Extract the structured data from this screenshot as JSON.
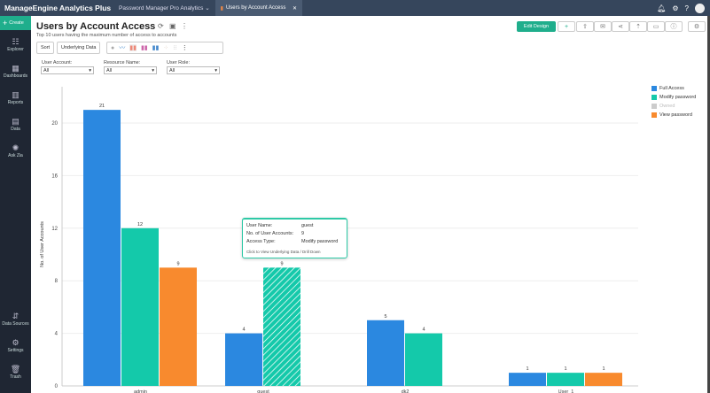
{
  "topbar": {
    "brand": "ManageEngine Analytics Plus",
    "workspace": "Password Manager Pro Analytics",
    "active_tab": "Users by Account Access"
  },
  "sidebar": {
    "create": "Create",
    "items": [
      {
        "label": "Explorer"
      },
      {
        "label": "Dashboards"
      },
      {
        "label": "Reports"
      },
      {
        "label": "Data"
      },
      {
        "label": "Ask Zia"
      },
      {
        "label": "Data Sources"
      },
      {
        "label": "Settings"
      },
      {
        "label": "Trash"
      }
    ]
  },
  "report": {
    "title": "Users by Account Access",
    "subtitle": "Top 10 users having the maximum number of access to accounts",
    "sort": "Sort",
    "underlying": "Underlying Data",
    "edit_design": "Edit Design"
  },
  "filters": [
    {
      "label": "User Account:",
      "value": "All"
    },
    {
      "label": "Resource Name:",
      "value": "All"
    },
    {
      "label": "User Role:",
      "value": "All"
    }
  ],
  "tooltip": {
    "k1": "User Name:",
    "v1": "guest",
    "k2": "No. of User Accounts:",
    "v2": "9",
    "k3": "Access Type:",
    "v3": "Modify password",
    "note": "Click to View Underlying Data / Drill Down"
  },
  "chart_data": {
    "type": "bar",
    "ylabel": "No. of User Accounts",
    "xlabel": "",
    "ylim": [
      0,
      22
    ],
    "yticks": [
      0,
      4,
      8,
      12,
      16,
      20
    ],
    "categories": [
      "admin",
      "guest",
      "dk2",
      "User_1"
    ],
    "series": [
      {
        "name": "Full Access",
        "color": "#2b88e0",
        "values": [
          21,
          4,
          5,
          1
        ]
      },
      {
        "name": "Modify password",
        "color": "#14c9aa",
        "values": [
          12,
          9,
          4,
          1
        ]
      },
      {
        "name": "Owned",
        "color": "#cccccc",
        "values": [
          null,
          null,
          null,
          null
        ]
      },
      {
        "name": "View password",
        "color": "#f88a2e",
        "values": [
          9,
          null,
          null,
          1
        ]
      }
    ],
    "legend": "top-right",
    "grid": true
  }
}
